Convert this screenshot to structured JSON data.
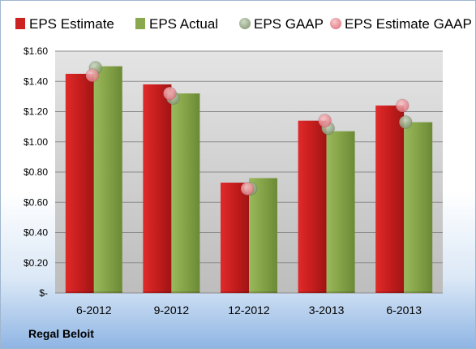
{
  "chart_data": {
    "type": "bar",
    "categories": [
      "6-2012",
      "9-2012",
      "12-2012",
      "3-2013",
      "6-2013"
    ],
    "series": [
      {
        "name": "EPS Estimate",
        "values": [
          1.45,
          1.38,
          0.73,
          1.14,
          1.24
        ],
        "color": "#cc2222",
        "kind": "bar"
      },
      {
        "name": "EPS Actual",
        "values": [
          1.5,
          1.32,
          0.76,
          1.07,
          1.13
        ],
        "color": "#8aa84e",
        "kind": "bar"
      },
      {
        "name": "EPS GAAP",
        "values": [
          1.49,
          1.29,
          0.69,
          1.09,
          1.13
        ],
        "color": "#8da27e",
        "kind": "marker"
      },
      {
        "name": "EPS Estimate GAAP",
        "values": [
          1.44,
          1.32,
          0.69,
          1.14,
          1.24
        ],
        "color": "#e8898f",
        "kind": "marker"
      }
    ],
    "yticks": [
      "$-",
      "$0.20",
      "$0.40",
      "$0.60",
      "$0.80",
      "$1.00",
      "$1.20",
      "$1.40",
      "$1.60"
    ],
    "ylim": [
      0,
      1.6
    ],
    "grid": true,
    "legend": "top"
  },
  "footer": {
    "company": "Regal Beloit"
  }
}
